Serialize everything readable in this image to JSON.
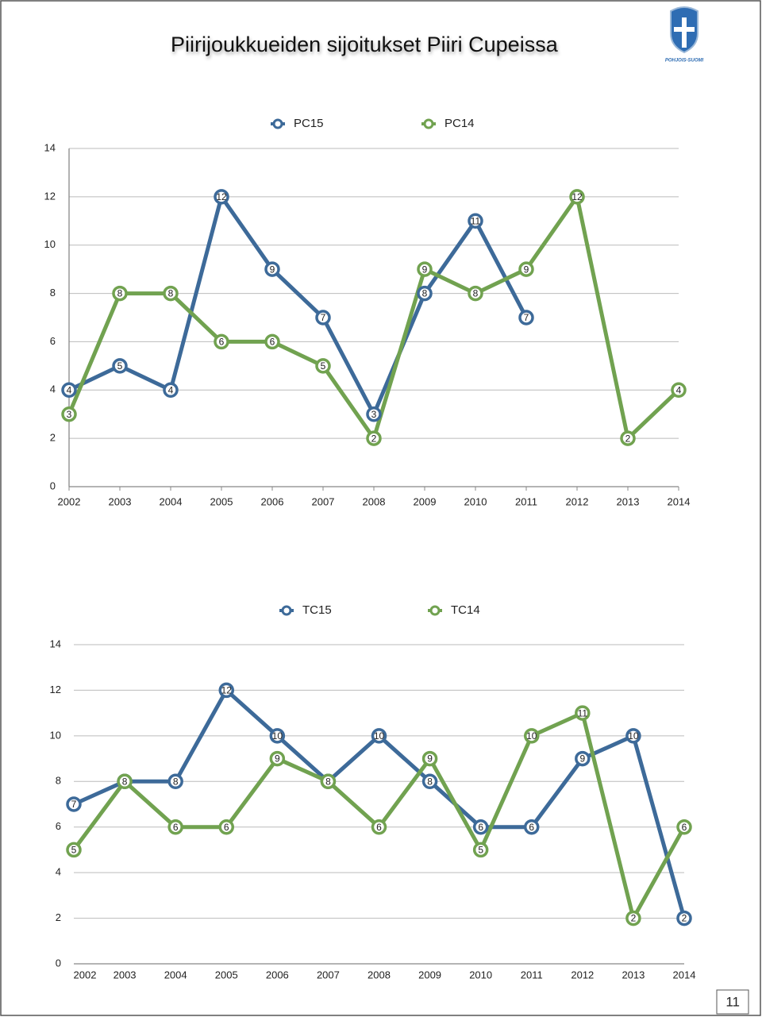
{
  "title": "Piirijoukkueiden sijoitukset Piiri Cupeissa",
  "logo_text": "POHJOIS-SUOMI",
  "page_number": "11",
  "chart_data": [
    {
      "type": "line",
      "categories": [
        "2002",
        "2003",
        "2004",
        "2005",
        "2006",
        "2007",
        "2008",
        "2009",
        "2010",
        "2011",
        "2012",
        "2013",
        "2014"
      ],
      "series": [
        {
          "name": "PC15",
          "color": "#3d6a99",
          "values": [
            4,
            5,
            4,
            12,
            9,
            7,
            3,
            8,
            11,
            7,
            null,
            null,
            null
          ]
        },
        {
          "name": "PC14",
          "color": "#71a250",
          "values": [
            3,
            8,
            8,
            6,
            6,
            5,
            2,
            9,
            8,
            9,
            12,
            2,
            4
          ]
        }
      ],
      "ylim": [
        0,
        14
      ],
      "yticks": [
        0,
        2,
        4,
        6,
        8,
        10,
        12,
        14
      ],
      "grid": true,
      "legend": "top"
    },
    {
      "type": "line",
      "categories": [
        "2002",
        "2003",
        "2004",
        "2005",
        "2006",
        "2007",
        "2008",
        "2009",
        "2010",
        "2011",
        "2012",
        "2013",
        "2014"
      ],
      "series": [
        {
          "name": "TC15",
          "color": "#3d6a99",
          "values": [
            7,
            8,
            8,
            12,
            10,
            8,
            10,
            8,
            6,
            6,
            9,
            10,
            2
          ]
        },
        {
          "name": "TC14",
          "color": "#71a250",
          "values": [
            5,
            8,
            6,
            6,
            9,
            8,
            6,
            9,
            5,
            10,
            11,
            2,
            6
          ]
        }
      ],
      "ylim": [
        0,
        14
      ],
      "yticks": [
        0,
        2,
        4,
        6,
        8,
        10,
        12,
        14
      ],
      "grid": true,
      "legend": "top"
    }
  ]
}
